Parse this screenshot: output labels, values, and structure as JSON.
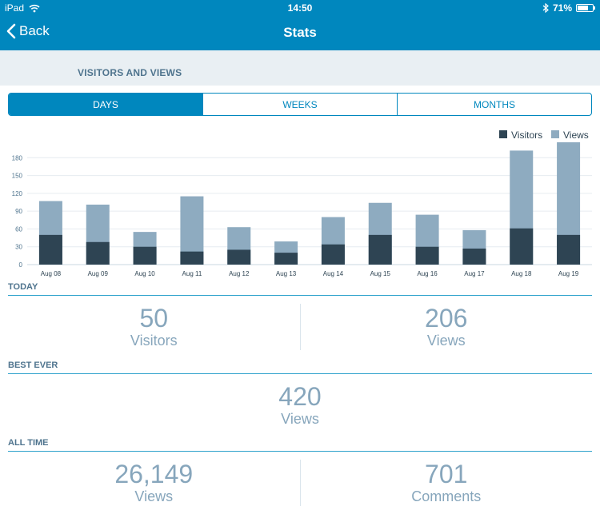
{
  "status_bar": {
    "device": "iPad",
    "time": "14:50",
    "battery": "71%",
    "battery_level": 0.71
  },
  "nav": {
    "back_label": "Back",
    "title": "Stats"
  },
  "section_title": "VISITORS AND VIEWS",
  "period_tabs": [
    {
      "label": "DAYS",
      "active": true
    },
    {
      "label": "WEEKS",
      "active": false
    },
    {
      "label": "MONTHS",
      "active": false
    }
  ],
  "colors": {
    "accent": "#0087be",
    "visitors": "#2e4453",
    "views": "#8eabc0"
  },
  "chart_data": {
    "type": "bar",
    "stacked": "overlay",
    "categories": [
      "Aug 08",
      "Aug 09",
      "Aug 10",
      "Aug 11",
      "Aug 12",
      "Aug 13",
      "Aug 14",
      "Aug 15",
      "Aug 16",
      "Aug 17",
      "Aug 18",
      "Aug 19"
    ],
    "series": [
      {
        "name": "Visitors",
        "values": [
          50,
          38,
          30,
          22,
          25,
          20,
          34,
          50,
          30,
          27,
          61,
          50
        ]
      },
      {
        "name": "Views",
        "values": [
          107,
          101,
          55,
          115,
          63,
          39,
          80,
          104,
          84,
          58,
          192,
          206
        ]
      }
    ],
    "yticks": [
      0,
      30,
      60,
      90,
      120,
      150,
      180
    ],
    "ylim": [
      0,
      210
    ],
    "grid": true,
    "legend": "top-right"
  },
  "today": {
    "title": "TODAY",
    "stats": [
      {
        "value": "50",
        "label": "Visitors"
      },
      {
        "value": "206",
        "label": "Views"
      }
    ]
  },
  "best_ever": {
    "title": "BEST EVER",
    "stats": [
      {
        "value": "420",
        "label": "Views"
      }
    ]
  },
  "all_time": {
    "title": "ALL TIME",
    "stats": [
      {
        "value": "26,149",
        "label": "Views"
      },
      {
        "value": "701",
        "label": "Comments"
      }
    ]
  }
}
